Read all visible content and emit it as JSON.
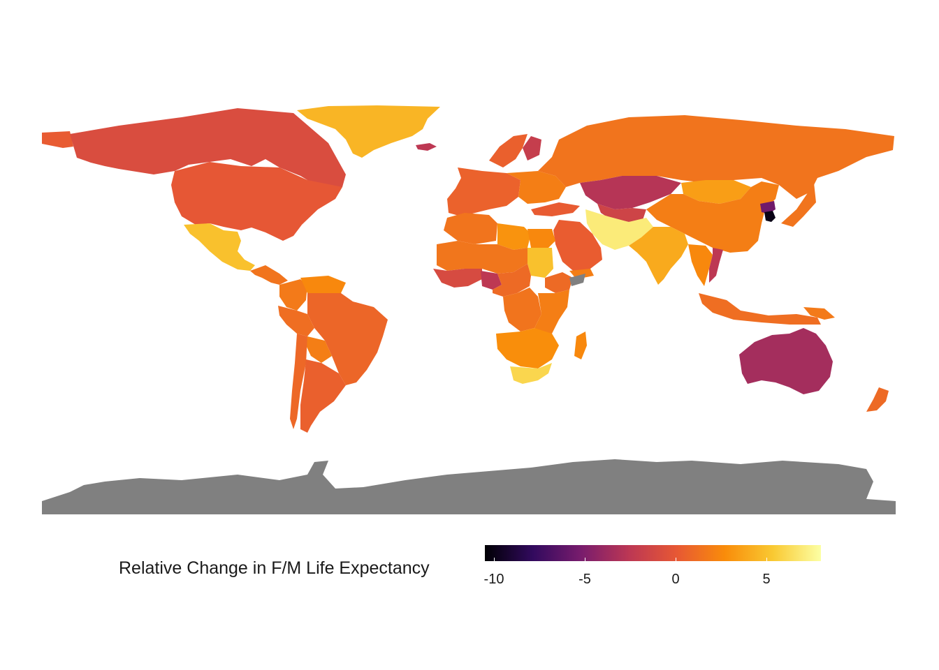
{
  "map": {
    "missing_color": "#808080",
    "regions": [
      {
        "name": "greenland",
        "value": 4.5
      },
      {
        "name": "alaska",
        "value": 0.2
      },
      {
        "name": "canada",
        "value": -0.8
      },
      {
        "name": "usa",
        "value": 0.0
      },
      {
        "name": "mexico",
        "value": 5.0
      },
      {
        "name": "central-america",
        "value": 1.5
      },
      {
        "name": "venezuela",
        "value": 2.5
      },
      {
        "name": "colombia",
        "value": 1.8
      },
      {
        "name": "brazil",
        "value": 0.8
      },
      {
        "name": "peru",
        "value": 1.2
      },
      {
        "name": "bolivia",
        "value": 2.0
      },
      {
        "name": "argentina",
        "value": 0.5
      },
      {
        "name": "chile",
        "value": 0.9
      },
      {
        "name": "iceland",
        "value": -2.5
      },
      {
        "name": "scandinavia",
        "value": 0.5
      },
      {
        "name": "finland",
        "value": -2.0
      },
      {
        "name": "western-europe",
        "value": 0.6
      },
      {
        "name": "eastern-europe",
        "value": 2.0
      },
      {
        "name": "russia",
        "value": 1.5
      },
      {
        "name": "kazakhstan",
        "value": -2.8
      },
      {
        "name": "central-asia",
        "value": -1.5
      },
      {
        "name": "mongolia",
        "value": 3.5
      },
      {
        "name": "china",
        "value": 2.0
      },
      {
        "name": "north-korea",
        "value": -5.5
      },
      {
        "name": "south-korea",
        "value": -10.0
      },
      {
        "name": "japan",
        "value": 1.5
      },
      {
        "name": "turkey",
        "value": 0.2
      },
      {
        "name": "iran-afghanistan-pakistan",
        "value": 7.0
      },
      {
        "name": "arabia",
        "value": 0.3
      },
      {
        "name": "yemen",
        "value": 2.0
      },
      {
        "name": "india",
        "value": 4.0
      },
      {
        "name": "southeast-asia",
        "value": 2.5
      },
      {
        "name": "vietnam",
        "value": -2.5
      },
      {
        "name": "indonesia",
        "value": 1.2
      },
      {
        "name": "papua-new-guinea",
        "value": 1.8
      },
      {
        "name": "australia",
        "value": -3.5
      },
      {
        "name": "new-zealand",
        "value": 1.0
      },
      {
        "name": "north-africa",
        "value": 1.5
      },
      {
        "name": "libya",
        "value": 3.0
      },
      {
        "name": "egypt",
        "value": 2.5
      },
      {
        "name": "sahel",
        "value": 1.6
      },
      {
        "name": "sudan",
        "value": 5.0
      },
      {
        "name": "west-africa",
        "value": -1.0
      },
      {
        "name": "nigeria",
        "value": -2.5
      },
      {
        "name": "ethiopia",
        "value": 1.0
      },
      {
        "name": "somalia",
        "value": null
      },
      {
        "name": "central-africa",
        "value": 1.0
      },
      {
        "name": "drc",
        "value": 1.5
      },
      {
        "name": "east-africa",
        "value": 2.0
      },
      {
        "name": "southern-africa",
        "value": 2.8
      },
      {
        "name": "south-africa",
        "value": 6.0
      },
      {
        "name": "madagascar",
        "value": 2.5
      },
      {
        "name": "antarctica",
        "value": null
      }
    ]
  },
  "legend": {
    "title": "Relative Change in F/M Life Expectancy",
    "min": -10.5,
    "max": 8,
    "ticks": [
      {
        "value": -10,
        "label": "-10"
      },
      {
        "value": -5,
        "label": "-5"
      },
      {
        "value": 0,
        "label": "0"
      },
      {
        "value": 5,
        "label": "5"
      }
    ]
  },
  "colors": {
    "scale": [
      "#000004",
      "#320a5e",
      "#781c6d",
      "#bc3754",
      "#e75834",
      "#f98c0a",
      "#f9c932",
      "#fcffa4"
    ]
  }
}
